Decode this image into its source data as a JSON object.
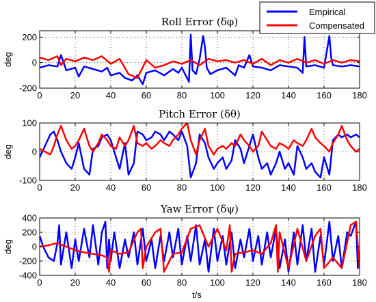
{
  "chart_data": [
    {
      "type": "line",
      "title": "Roll Error (δφ)",
      "ylabel": "deg",
      "xlabel": "",
      "xlim": [
        0,
        180
      ],
      "ylim": [
        -200,
        250
      ],
      "xticks": [
        0,
        20,
        40,
        60,
        80,
        100,
        120,
        140,
        160,
        180
      ],
      "yticks": [
        -200,
        0,
        200
      ],
      "grid": true,
      "series": [
        {
          "name": "Empirical",
          "color": "#0000ff",
          "x": [
            0,
            5,
            10,
            12,
            15,
            20,
            22,
            25,
            30,
            35,
            38,
            40,
            45,
            48,
            52,
            55,
            58,
            60,
            65,
            70,
            75,
            78,
            80,
            84,
            85,
            86,
            88,
            90,
            92,
            93,
            94,
            96,
            100,
            105,
            110,
            112,
            115,
            118,
            120,
            125,
            130,
            135,
            140,
            145,
            148,
            149,
            150,
            155,
            160,
            163,
            164,
            165,
            170,
            175,
            180
          ],
          "values": [
            -40,
            -20,
            -30,
            60,
            -60,
            -40,
            -110,
            -30,
            -50,
            -70,
            -40,
            -100,
            -80,
            -120,
            -140,
            -100,
            -170,
            -80,
            -60,
            -100,
            -50,
            -80,
            -40,
            -150,
            220,
            -60,
            -90,
            30,
            210,
            120,
            -40,
            -90,
            -60,
            -40,
            -100,
            -20,
            -40,
            60,
            -30,
            -40,
            -60,
            -20,
            -30,
            -40,
            -80,
            200,
            -30,
            -20,
            -40,
            210,
            40,
            -20,
            -30,
            -20,
            -30
          ]
        },
        {
          "name": "Compensated",
          "color": "#ff0000",
          "x": [
            0,
            5,
            10,
            12,
            15,
            20,
            25,
            30,
            35,
            40,
            45,
            50,
            55,
            60,
            65,
            70,
            75,
            80,
            85,
            90,
            95,
            100,
            105,
            110,
            115,
            120,
            125,
            130,
            135,
            140,
            145,
            150,
            155,
            160,
            165,
            170,
            175,
            180
          ],
          "values": [
            40,
            20,
            50,
            -20,
            30,
            10,
            40,
            20,
            50,
            -10,
            30,
            -90,
            -120,
            20,
            -40,
            -20,
            10,
            -10,
            20,
            -20,
            30,
            10,
            20,
            0,
            20,
            -10,
            30,
            -20,
            20,
            0,
            30,
            0,
            20,
            -10,
            20,
            0,
            20,
            10
          ]
        }
      ]
    },
    {
      "type": "line",
      "title": "Pitch Error (δθ)",
      "ylabel": "deg",
      "xlabel": "",
      "xlim": [
        0,
        180
      ],
      "ylim": [
        -100,
        100
      ],
      "xticks": [
        0,
        20,
        40,
        60,
        80,
        100,
        120,
        140,
        160,
        180
      ],
      "yticks": [
        -100,
        0,
        100
      ],
      "grid": true,
      "series": [
        {
          "name": "Empirical",
          "color": "#0000ff",
          "x": [
            0,
            3,
            6,
            8,
            10,
            12,
            15,
            18,
            20,
            22,
            25,
            28,
            30,
            33,
            35,
            38,
            40,
            43,
            45,
            48,
            50,
            53,
            55,
            58,
            60,
            63,
            65,
            68,
            70,
            73,
            75,
            78,
            80,
            83,
            85,
            88,
            90,
            93,
            95,
            98,
            100,
            103,
            105,
            108,
            110,
            113,
            115,
            118,
            120,
            123,
            125,
            128,
            130,
            133,
            135,
            138,
            140,
            143,
            145,
            148,
            150,
            153,
            155,
            158,
            160,
            163,
            165,
            168,
            170,
            173,
            175,
            178,
            180
          ],
          "values": [
            -20,
            20,
            60,
            70,
            40,
            0,
            -40,
            -60,
            -20,
            30,
            -60,
            -80,
            10,
            20,
            50,
            60,
            40,
            -20,
            -60,
            30,
            -80,
            -40,
            70,
            60,
            40,
            50,
            70,
            60,
            40,
            70,
            60,
            40,
            70,
            20,
            -90,
            -40,
            60,
            30,
            -20,
            -60,
            -40,
            -20,
            -60,
            -30,
            40,
            10,
            -40,
            20,
            60,
            -20,
            -60,
            -40,
            -80,
            -40,
            0,
            -60,
            -40,
            -80,
            20,
            -20,
            -60,
            -40,
            -70,
            -90,
            -20,
            -80,
            40,
            60,
            50,
            60,
            50,
            60,
            50
          ]
        },
        {
          "name": "Compensated",
          "color": "#ff0000",
          "x": [
            0,
            3,
            6,
            8,
            10,
            12,
            15,
            18,
            20,
            22,
            25,
            28,
            30,
            33,
            35,
            38,
            40,
            43,
            45,
            48,
            50,
            53,
            55,
            58,
            60,
            63,
            65,
            68,
            70,
            73,
            75,
            78,
            80,
            83,
            85,
            88,
            90,
            93,
            95,
            98,
            100,
            103,
            105,
            108,
            110,
            113,
            115,
            118,
            120,
            123,
            125,
            128,
            130,
            133,
            135,
            138,
            140,
            143,
            145,
            148,
            150,
            153,
            155,
            158,
            160,
            163,
            165,
            168,
            170,
            173,
            175,
            178,
            180
          ],
          "values": [
            10,
            0,
            -10,
            20,
            60,
            90,
            40,
            10,
            20,
            40,
            80,
            20,
            0,
            30,
            60,
            40,
            20,
            10,
            50,
            20,
            40,
            90,
            30,
            20,
            30,
            10,
            20,
            40,
            30,
            20,
            40,
            60,
            80,
            100,
            40,
            -10,
            40,
            80,
            20,
            -10,
            10,
            20,
            10,
            30,
            20,
            60,
            40,
            20,
            0,
            20,
            70,
            40,
            20,
            10,
            30,
            20,
            10,
            40,
            30,
            20,
            40,
            80,
            50,
            30,
            20,
            0,
            30,
            60,
            90,
            40,
            20,
            0,
            10
          ]
        }
      ]
    },
    {
      "type": "line",
      "title": "Yaw Error (δψ)",
      "ylabel": "deg",
      "xlabel": "t/s",
      "xlim": [
        0,
        180
      ],
      "ylim": [
        -400,
        400
      ],
      "xticks": [
        0,
        20,
        40,
        60,
        80,
        100,
        120,
        140,
        160,
        180
      ],
      "yticks": [
        -400,
        -200,
        0,
        200,
        400
      ],
      "grid": true,
      "series": [
        {
          "name": "Empirical",
          "color": "#0000ff",
          "x": [
            0,
            2,
            5,
            8,
            10,
            11,
            12,
            15,
            18,
            20,
            22,
            25,
            28,
            30,
            33,
            35,
            37,
            38,
            39,
            40,
            42,
            45,
            48,
            50,
            53,
            55,
            58,
            60,
            63,
            65,
            68,
            70,
            73,
            75,
            78,
            80,
            83,
            85,
            88,
            90,
            93,
            95,
            98,
            100,
            103,
            105,
            108,
            110,
            113,
            115,
            118,
            120,
            123,
            125,
            128,
            130,
            133,
            135,
            138,
            140,
            143,
            145,
            148,
            150,
            153,
            155,
            158,
            160,
            163,
            165,
            168,
            170,
            173,
            175,
            178,
            179,
            180
          ],
          "values": [
            150,
            0,
            -150,
            -200,
            50,
            300,
            -250,
            200,
            -300,
            100,
            -200,
            250,
            -150,
            300,
            -250,
            200,
            350,
            -300,
            100,
            -200,
            200,
            -300,
            100,
            -150,
            200,
            -250,
            250,
            -200,
            100,
            -300,
            150,
            -200,
            200,
            -150,
            250,
            -250,
            150,
            -200,
            300,
            -250,
            100,
            -350,
            250,
            -200,
            150,
            -250,
            200,
            -300,
            100,
            -150,
            250,
            -200,
            150,
            -250,
            200,
            -150,
            250,
            -300,
            100,
            -350,
            200,
            -250,
            300,
            -200,
            250,
            -350,
            150,
            -250,
            350,
            -200,
            150,
            -300,
            200,
            150,
            350,
            -300,
            -100
          ]
        },
        {
          "name": "Compensated",
          "color": "#ff0000",
          "x": [
            0,
            5,
            10,
            15,
            20,
            25,
            30,
            35,
            38,
            39,
            40,
            45,
            50,
            55,
            57,
            58,
            60,
            65,
            68,
            70,
            75,
            80,
            85,
            90,
            95,
            100,
            105,
            107,
            108,
            110,
            115,
            120,
            125,
            130,
            133,
            134,
            135,
            140,
            145,
            150,
            155,
            158,
            160,
            165,
            170,
            175,
            178,
            180
          ],
          "values": [
            0,
            20,
            50,
            0,
            -50,
            -80,
            -100,
            -120,
            -150,
            -350,
            -50,
            -100,
            -80,
            200,
            250,
            -300,
            0,
            200,
            250,
            -350,
            -100,
            -80,
            250,
            300,
            0,
            250,
            -50,
            300,
            -350,
            -100,
            -80,
            -50,
            -100,
            50,
            300,
            -350,
            200,
            -300,
            250,
            -200,
            150,
            250,
            -300,
            -150,
            -300,
            300,
            350,
            -300
          ]
        }
      ]
    }
  ],
  "legend": {
    "position": "top-right",
    "entries": [
      {
        "name": "Empirical",
        "color": "#0000ff"
      },
      {
        "name": "Compensated",
        "color": "#ff0000"
      }
    ]
  }
}
